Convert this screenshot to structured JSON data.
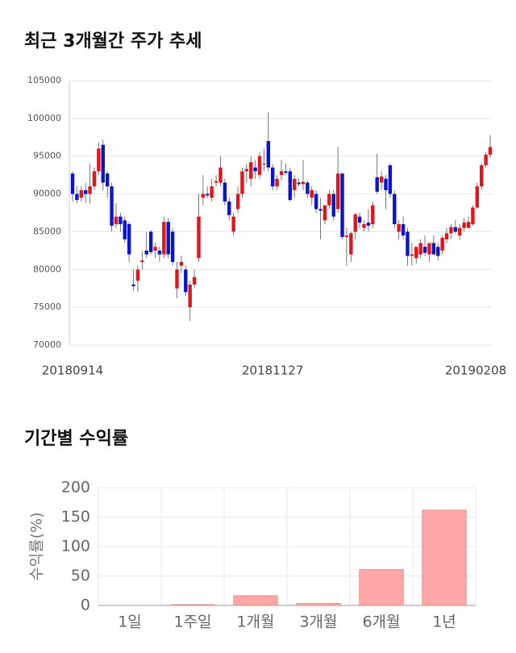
{
  "chart_data": [
    {
      "type": "candlestick",
      "title": "최근 3개월간 주가 추세",
      "categories": [
        "20180914",
        null,
        null,
        null,
        null,
        null,
        null,
        null,
        null,
        null,
        null,
        null,
        null,
        null,
        null,
        null,
        null,
        null,
        null,
        null,
        null,
        null,
        null,
        null,
        null,
        null,
        null,
        null,
        null,
        null,
        null,
        null,
        null,
        null,
        null,
        null,
        null,
        null,
        null,
        null,
        null,
        null,
        null,
        null,
        null,
        null,
        "20181127",
        null,
        null,
        null,
        null,
        null,
        null,
        null,
        null,
        null,
        null,
        null,
        null,
        null,
        null,
        null,
        null,
        null,
        null,
        null,
        null,
        null,
        null,
        null,
        null,
        null,
        null,
        null,
        null,
        null,
        null,
        null,
        null,
        null,
        null,
        null,
        null,
        null,
        null,
        null,
        null,
        null,
        null,
        null,
        null,
        null,
        null,
        null,
        null,
        null,
        "20190208"
      ],
      "open": [
        92700,
        90000,
        89500,
        90500,
        90000,
        91000,
        93000,
        96500,
        92700,
        91000,
        86000,
        87000,
        86500,
        86000,
        78000,
        78500,
        81000,
        82500,
        85000,
        82500,
        82500,
        82000,
        86300,
        85000,
        77500,
        80500,
        80000,
        75000,
        78000,
        81500,
        89500,
        90000,
        89500,
        91500,
        91500,
        91500,
        89000,
        85000,
        88000,
        90000,
        93000,
        92000,
        93500,
        92500,
        94000,
        97000,
        93500,
        91000,
        92500,
        93000,
        93000,
        90500,
        91500,
        91300,
        91500,
        89500,
        90000,
        88000,
        86500,
        88500,
        90000,
        88000,
        92700,
        84300,
        82000,
        85000,
        87000,
        85500,
        86200,
        86000,
        92200,
        91500,
        92000,
        93800,
        90000,
        85000,
        86000,
        85000,
        81800,
        81500,
        82000,
        83000,
        82000,
        83500,
        83000,
        82500,
        84000,
        84800,
        85600,
        84500,
        85500,
        85500,
        86000,
        88200,
        91000,
        93800,
        95200
      ],
      "high": [
        93000,
        91000,
        91000,
        91500,
        94000,
        93500,
        96800,
        97200,
        93000,
        91500,
        88800,
        87500,
        87000,
        86300,
        80000,
        80500,
        82500,
        85000,
        85200,
        83500,
        83000,
        87000,
        86800,
        85500,
        81000,
        81800,
        80500,
        78500,
        80000,
        90000,
        92500,
        91000,
        92000,
        92500,
        95000,
        92000,
        89500,
        87500,
        91000,
        93500,
        94000,
        95000,
        94500,
        95500,
        96000,
        100800,
        94000,
        92500,
        94500,
        94000,
        93500,
        92500,
        92000,
        94500,
        91800,
        91000,
        90500,
        89500,
        88500,
        90500,
        90500,
        96200,
        92800,
        85500,
        85000,
        87500,
        87500,
        86500,
        88000,
        89000,
        95300,
        93000,
        92500,
        94000,
        90500,
        86500,
        87000,
        85500,
        83500,
        83000,
        84000,
        84500,
        83500,
        84500,
        83500,
        84500,
        85500,
        86000,
        86500,
        86000,
        86800,
        87000,
        88500,
        91500,
        94000,
        95500,
        97800
      ],
      "low": [
        89000,
        88800,
        89000,
        88800,
        88700,
        90500,
        92500,
        90500,
        89500,
        85000,
        85500,
        85000,
        83500,
        81000,
        77200,
        77000,
        80000,
        81500,
        82000,
        81500,
        81000,
        81500,
        81500,
        80500,
        76200,
        79500,
        76500,
        73200,
        77500,
        81000,
        88500,
        89500,
        89000,
        91000,
        91000,
        88500,
        86500,
        84500,
        87500,
        89500,
        91500,
        91000,
        92000,
        92000,
        93000,
        93000,
        90500,
        90500,
        91800,
        92500,
        89000,
        89500,
        91000,
        90500,
        89500,
        88500,
        87500,
        84000,
        86000,
        88000,
        86500,
        87500,
        84000,
        80500,
        81000,
        84000,
        85500,
        85000,
        85000,
        85500,
        90000,
        90500,
        88000,
        89500,
        85500,
        84000,
        84000,
        80500,
        80500,
        80800,
        81500,
        81800,
        81000,
        82000,
        81200,
        82000,
        83500,
        84000,
        84800,
        84000,
        85000,
        85500,
        85800,
        88000,
        90500,
        93500,
        94800
      ],
      "close": [
        90000,
        89200,
        90500,
        90000,
        91000,
        93000,
        96000,
        91500,
        91000,
        85800,
        87000,
        86000,
        84000,
        82000,
        77800,
        80000,
        81200,
        82000,
        82300,
        83000,
        82000,
        86300,
        82000,
        81000,
        80000,
        81000,
        77000,
        78000,
        79000,
        87000,
        90000,
        89800,
        91000,
        91700,
        93500,
        89000,
        87200,
        87000,
        90000,
        93000,
        93300,
        94200,
        93000,
        95000,
        94000,
        93500,
        91000,
        92000,
        93000,
        92800,
        89200,
        92000,
        91300,
        91600,
        90000,
        90500,
        88000,
        87800,
        88500,
        90000,
        87000,
        92700,
        84300,
        84500,
        84800,
        87300,
        86200,
        86000,
        85800,
        88500,
        90300,
        92300,
        90500,
        90000,
        86000,
        86000,
        84500,
        81800,
        82000,
        83000,
        83500,
        82200,
        83500,
        82000,
        81800,
        84200,
        84800,
        85600,
        85000,
        85500,
        86200,
        86300,
        88200,
        91000,
        93800,
        95200,
        96200
      ],
      "up_color": "#e0161b",
      "down_color": "#0a14c8",
      "ylim": [
        70000,
        105000
      ],
      "yticks": [
        70000,
        75000,
        80000,
        85000,
        90000,
        95000,
        100000,
        105000
      ],
      "grid": true
    },
    {
      "type": "bar",
      "title": "기간별 수익률",
      "ylabel": "수익률(%)",
      "categories": [
        "1일",
        "1주일",
        "1개월",
        "3개월",
        "6개월",
        "1년"
      ],
      "values": [
        0,
        1.5,
        16.5,
        3.5,
        61,
        162
      ],
      "color": "#ffa6a6",
      "ylim": [
        0,
        200
      ],
      "yticks": [
        0,
        50,
        100,
        150,
        200
      ],
      "grid": true
    }
  ]
}
